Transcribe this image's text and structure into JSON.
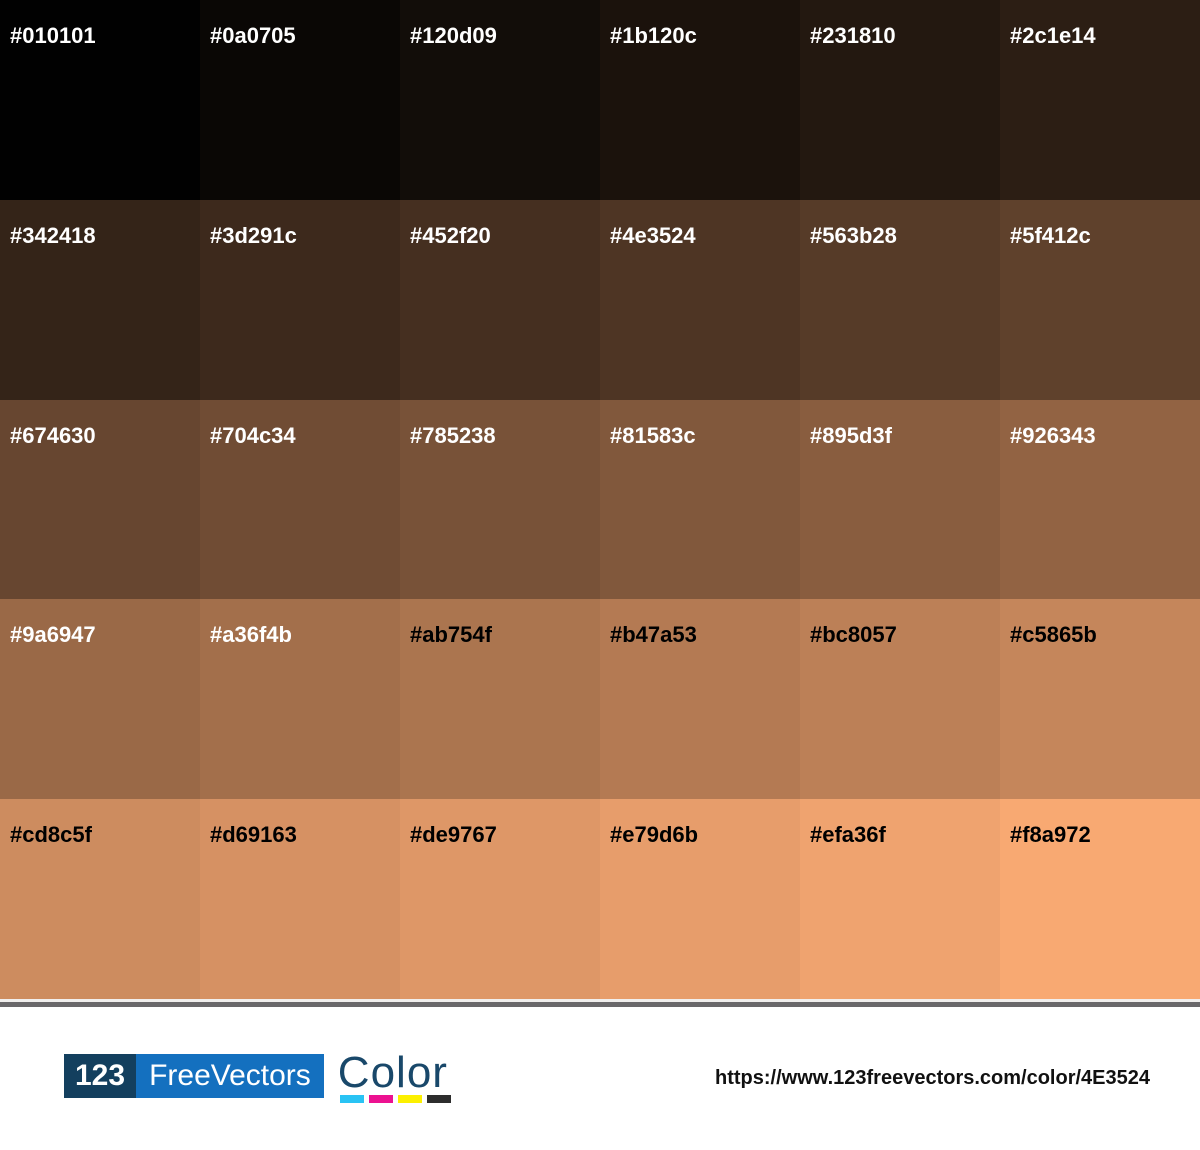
{
  "palette": {
    "rows": 5,
    "cols": 6,
    "swatches": [
      {
        "hex": "#010101",
        "fg": "#ffffff"
      },
      {
        "hex": "#0a0705",
        "fg": "#ffffff"
      },
      {
        "hex": "#120d09",
        "fg": "#ffffff"
      },
      {
        "hex": "#1b120c",
        "fg": "#ffffff"
      },
      {
        "hex": "#231810",
        "fg": "#ffffff"
      },
      {
        "hex": "#2c1e14",
        "fg": "#ffffff"
      },
      {
        "hex": "#342418",
        "fg": "#ffffff"
      },
      {
        "hex": "#3d291c",
        "fg": "#ffffff"
      },
      {
        "hex": "#452f20",
        "fg": "#ffffff"
      },
      {
        "hex": "#4e3524",
        "fg": "#ffffff"
      },
      {
        "hex": "#563b28",
        "fg": "#ffffff"
      },
      {
        "hex": "#5f412c",
        "fg": "#ffffff"
      },
      {
        "hex": "#674630",
        "fg": "#ffffff"
      },
      {
        "hex": "#704c34",
        "fg": "#ffffff"
      },
      {
        "hex": "#785238",
        "fg": "#ffffff"
      },
      {
        "hex": "#81583c",
        "fg": "#ffffff"
      },
      {
        "hex": "#895d3f",
        "fg": "#ffffff"
      },
      {
        "hex": "#926343",
        "fg": "#ffffff"
      },
      {
        "hex": "#9a6947",
        "fg": "#ffffff"
      },
      {
        "hex": "#a36f4b",
        "fg": "#ffffff"
      },
      {
        "hex": "#ab754f",
        "fg": "#000000"
      },
      {
        "hex": "#b47a53",
        "fg": "#000000"
      },
      {
        "hex": "#bc8057",
        "fg": "#000000"
      },
      {
        "hex": "#c5865b",
        "fg": "#000000"
      },
      {
        "hex": "#cd8c5f",
        "fg": "#000000"
      },
      {
        "hex": "#d69163",
        "fg": "#000000"
      },
      {
        "hex": "#de9767",
        "fg": "#000000"
      },
      {
        "hex": "#e79d6b",
        "fg": "#000000"
      },
      {
        "hex": "#efa36f",
        "fg": "#000000"
      },
      {
        "hex": "#f8a972",
        "fg": "#000000"
      }
    ]
  },
  "footer": {
    "logo": {
      "number": "123",
      "name": "FreeVectors",
      "suffix": "Color",
      "number_bg": "#133f5e",
      "name_bg": "#1470bf",
      "suffix_color": "#19486a",
      "bar_colors": [
        "#29c3f4",
        "#ec1190",
        "#fcf000",
        "#2d2d2d"
      ]
    },
    "url": "https://www.123freevectors.com/color/4E3524"
  }
}
